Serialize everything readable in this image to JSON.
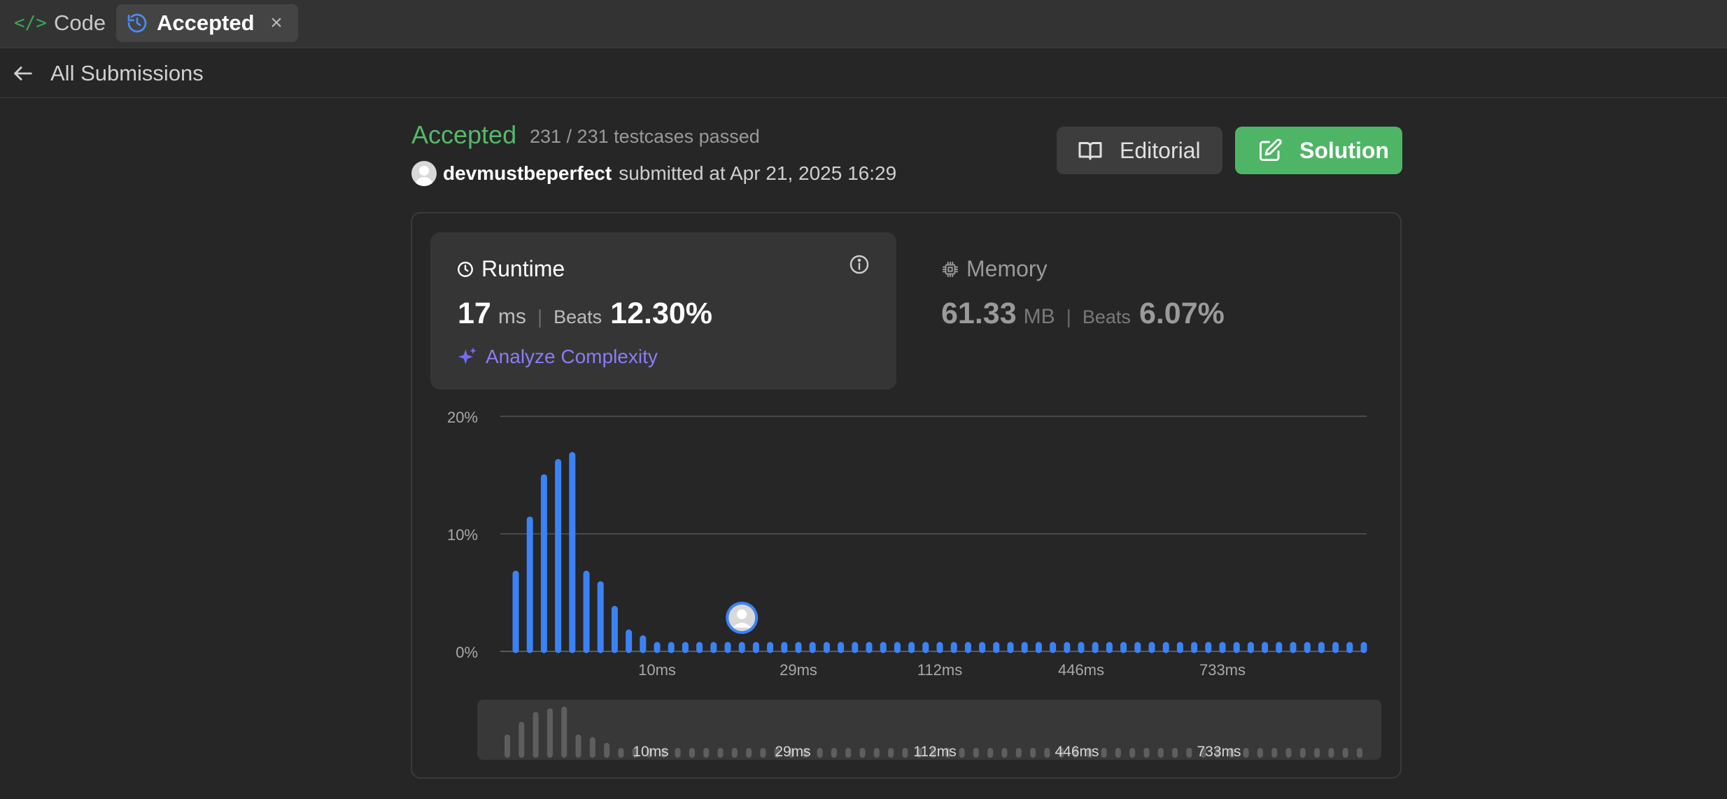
{
  "tabs": [
    {
      "label": "Code",
      "icon": "code-icon"
    },
    {
      "label": "Accepted",
      "icon": "history-icon",
      "close_icon": "close-icon"
    }
  ],
  "back": {
    "label": "All Submissions",
    "icon": "arrow-left-icon"
  },
  "submission": {
    "status": "Accepted",
    "testcases": "231 / 231 testcases passed",
    "username": "devmustbeperfect",
    "submitted_text": "submitted at Apr 21, 2025 16:29"
  },
  "buttons": {
    "editorial": {
      "label": "Editorial",
      "icon": "book-icon"
    },
    "solution": {
      "label": "Solution",
      "icon": "edit-icon"
    }
  },
  "runtime": {
    "title": "Runtime",
    "value": "17",
    "unit": "ms",
    "beats_label": "Beats",
    "beats_value": "12.30%",
    "analyze_label": "Analyze Complexity"
  },
  "memory": {
    "title": "Memory",
    "value": "61.33",
    "unit": "MB",
    "beats_label": "Beats",
    "beats_value": "6.07%"
  },
  "colors": {
    "accepted": "#55b96a",
    "bar": "#3b82f6",
    "solution_button": "#4fb566",
    "analyze": "#8b7cf6"
  },
  "chart_data": {
    "type": "bar",
    "y_ticks": [
      "20%",
      "10%",
      "0%"
    ],
    "ylim": [
      0,
      20
    ],
    "x_tick_labels": [
      {
        "label": "10ms",
        "index": 10
      },
      {
        "label": "29ms",
        "index": 20
      },
      {
        "label": "112ms",
        "index": 30
      },
      {
        "label": "446ms",
        "index": 40
      },
      {
        "label": "733ms",
        "index": 50
      }
    ],
    "values": [
      6.6,
      11.2,
      14.8,
      16.1,
      16.7,
      6.6,
      5.7,
      3.6,
      1.6,
      1.1,
      0.3,
      0.3,
      0.3,
      0.3,
      0.3,
      0.3,
      0.3,
      0.3,
      0.3,
      0.3,
      0.3,
      0.3,
      0.3,
      0.3,
      0.3,
      0.3,
      0.3,
      0.3,
      0.3,
      0.3,
      0.3,
      0.3,
      0.3,
      0.3,
      0.3,
      0.3,
      0.3,
      0.3,
      0.3,
      0.3,
      0.3,
      0.3,
      0.3,
      0.3,
      0.3,
      0.3,
      0.3,
      0.3,
      0.3,
      0.3,
      0.3,
      0.3,
      0.3,
      0.3,
      0.3,
      0.3,
      0.3,
      0.3,
      0.3,
      0.3,
      0.3
    ],
    "user_marker_index": 16,
    "grid": true
  }
}
